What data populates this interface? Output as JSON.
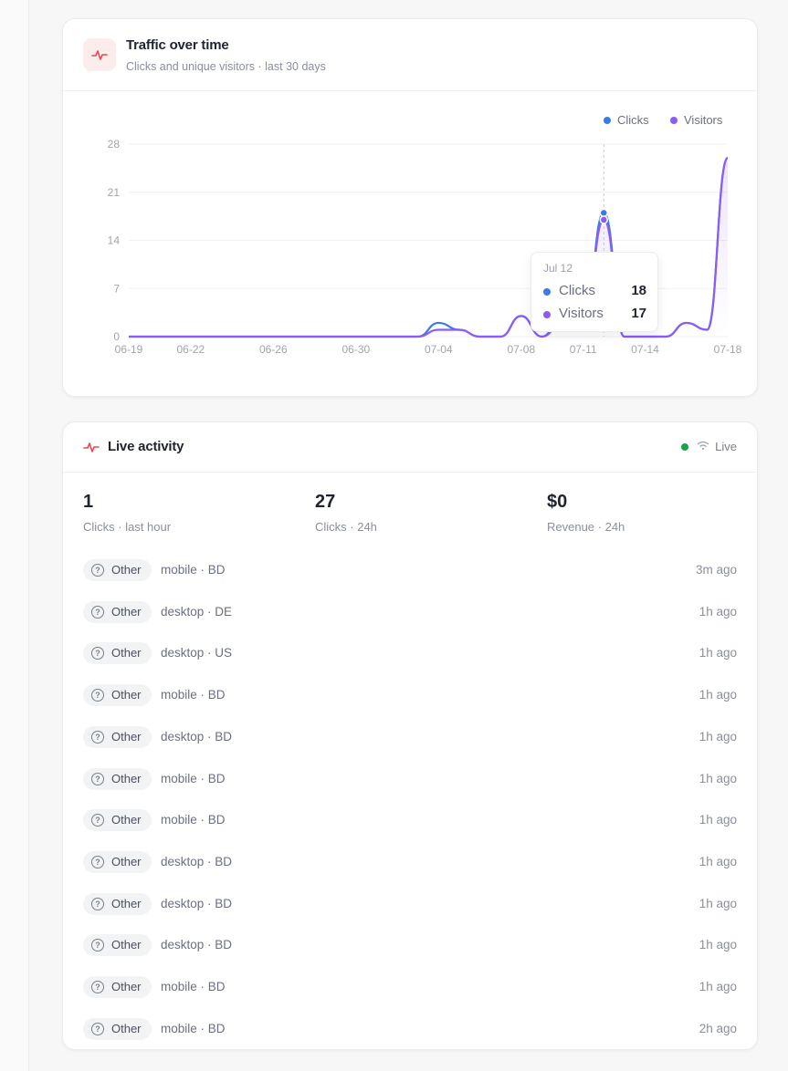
{
  "traffic": {
    "title": "Traffic over time",
    "subtitle": "Clicks and unique visitors · last 30 days",
    "legend": [
      {
        "name": "Clicks",
        "color": "#3b7be8"
      },
      {
        "name": "Visitors",
        "color": "#8b5cf6"
      }
    ],
    "tooltip": {
      "date": "Jul 12",
      "rows": [
        {
          "label": "Clicks",
          "value": "18",
          "color": "#3b7be8"
        },
        {
          "label": "Visitors",
          "value": "17",
          "color": "#8b5cf6"
        }
      ]
    }
  },
  "chart_data": {
    "type": "line",
    "title": "Traffic over time",
    "x": [
      "06-19",
      "06-20",
      "06-21",
      "06-22",
      "06-23",
      "06-24",
      "06-25",
      "06-26",
      "06-27",
      "06-28",
      "06-29",
      "06-30",
      "07-01",
      "07-02",
      "07-03",
      "07-04",
      "07-05",
      "07-06",
      "07-07",
      "07-08",
      "07-09",
      "07-10",
      "07-11",
      "07-12",
      "07-13",
      "07-14",
      "07-15",
      "07-16",
      "07-17",
      "07-18"
    ],
    "x_tick_labels": [
      "06-19",
      "06-22",
      "06-26",
      "06-30",
      "07-04",
      "07-08",
      "07-11",
      "07-14",
      "07-18"
    ],
    "y_tick_labels": [
      "0",
      "7",
      "14",
      "21",
      "28"
    ],
    "ylim": [
      0,
      28
    ],
    "series": [
      {
        "name": "Clicks",
        "color": "#3b7be8",
        "values": [
          0,
          0,
          0,
          0,
          0,
          0,
          0,
          0,
          0,
          0,
          0,
          0,
          0,
          0,
          0,
          2,
          1,
          0,
          0,
          3,
          0,
          3,
          1,
          18,
          0,
          0,
          0,
          2,
          1,
          26
        ]
      },
      {
        "name": "Visitors",
        "color": "#8b5cf6",
        "values": [
          0,
          0,
          0,
          0,
          0,
          0,
          0,
          0,
          0,
          0,
          0,
          0,
          0,
          0,
          0,
          1,
          1,
          0,
          0,
          3,
          0,
          2,
          1,
          17,
          0,
          0,
          0,
          2,
          1,
          26
        ]
      }
    ],
    "highlight_x": "07-12",
    "legend_position": "top-right",
    "grid": true
  },
  "live": {
    "title": "Live activity",
    "status": "Live",
    "stats": [
      {
        "value": "1",
        "label": "Clicks · last hour"
      },
      {
        "value": "27",
        "label": "Clicks · 24h"
      },
      {
        "value": "$0",
        "label": "Revenue · 24h"
      }
    ],
    "events": [
      {
        "source": "Other",
        "meta": "mobile · BD",
        "time": "3m ago"
      },
      {
        "source": "Other",
        "meta": "desktop · DE",
        "time": "1h ago"
      },
      {
        "source": "Other",
        "meta": "desktop · US",
        "time": "1h ago"
      },
      {
        "source": "Other",
        "meta": "mobile · BD",
        "time": "1h ago"
      },
      {
        "source": "Other",
        "meta": "desktop · BD",
        "time": "1h ago"
      },
      {
        "source": "Other",
        "meta": "mobile · BD",
        "time": "1h ago"
      },
      {
        "source": "Other",
        "meta": "mobile · BD",
        "time": "1h ago"
      },
      {
        "source": "Other",
        "meta": "desktop · BD",
        "time": "1h ago"
      },
      {
        "source": "Other",
        "meta": "desktop · BD",
        "time": "1h ago"
      },
      {
        "source": "Other",
        "meta": "desktop · BD",
        "time": "1h ago"
      },
      {
        "source": "Other",
        "meta": "mobile · BD",
        "time": "1h ago"
      },
      {
        "source": "Other",
        "meta": "mobile · BD",
        "time": "2h ago"
      }
    ]
  }
}
